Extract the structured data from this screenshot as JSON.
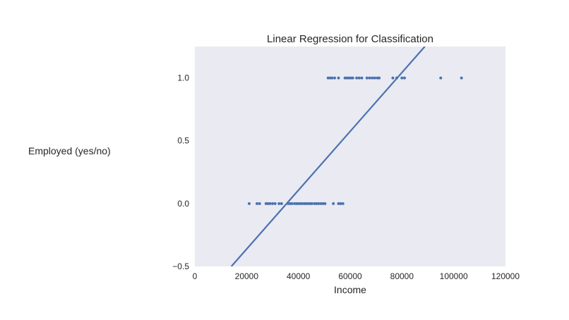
{
  "chart_data": {
    "type": "scatter",
    "title": "Linear Regression for Classification",
    "xlabel": "Income",
    "ylabel": "Employed (yes/no)",
    "xlim": [
      0,
      120000
    ],
    "ylim": [
      -0.5,
      1.25
    ],
    "xticks": [
      0,
      20000,
      40000,
      60000,
      80000,
      100000,
      120000
    ],
    "xtick_labels": [
      "0",
      "20000",
      "40000",
      "60000",
      "80000",
      "100000",
      "120000"
    ],
    "yticks": [
      -0.5,
      0.0,
      0.5,
      1.0
    ],
    "ytick_labels": [
      "−0.5",
      "0.0",
      "0.5",
      "1.0"
    ],
    "grid": false,
    "background_color": "#EAEAF2",
    "point_color": "#4C72B0",
    "line_color": "#4C72B0",
    "series": [
      {
        "kind": "points",
        "points": [
          [
            21000,
            0
          ],
          [
            24000,
            0
          ],
          [
            25000,
            0
          ],
          [
            27500,
            0
          ],
          [
            28200,
            0
          ],
          [
            29000,
            0
          ],
          [
            30000,
            0
          ],
          [
            31000,
            0
          ],
          [
            32500,
            0
          ],
          [
            33500,
            0
          ],
          [
            36000,
            0
          ],
          [
            36800,
            0
          ],
          [
            37500,
            0
          ],
          [
            38500,
            0
          ],
          [
            39300,
            0
          ],
          [
            40000,
            0
          ],
          [
            40800,
            0
          ],
          [
            41500,
            0
          ],
          [
            42300,
            0
          ],
          [
            43000,
            0
          ],
          [
            43800,
            0
          ],
          [
            44500,
            0
          ],
          [
            45200,
            0
          ],
          [
            46200,
            0
          ],
          [
            47000,
            0
          ],
          [
            47800,
            0
          ],
          [
            48700,
            0
          ],
          [
            49500,
            0
          ],
          [
            50300,
            0
          ],
          [
            53500,
            0
          ],
          [
            55500,
            0
          ],
          [
            56300,
            0
          ],
          [
            57200,
            0
          ],
          [
            51500,
            1
          ],
          [
            52300,
            1
          ],
          [
            53000,
            1
          ],
          [
            54000,
            1
          ],
          [
            55500,
            1
          ],
          [
            58000,
            1
          ],
          [
            58800,
            1
          ],
          [
            59500,
            1
          ],
          [
            60300,
            1
          ],
          [
            61000,
            1
          ],
          [
            62500,
            1
          ],
          [
            63500,
            1
          ],
          [
            64500,
            1
          ],
          [
            66500,
            1
          ],
          [
            67500,
            1
          ],
          [
            68500,
            1
          ],
          [
            69500,
            1
          ],
          [
            70500,
            1
          ],
          [
            71200,
            1
          ],
          [
            76500,
            1
          ],
          [
            78000,
            1
          ],
          [
            80000,
            1
          ],
          [
            81000,
            1
          ],
          [
            95000,
            1
          ],
          [
            103000,
            1
          ]
        ]
      },
      {
        "kind": "line",
        "x": [
          14100,
          88850
        ],
        "y": [
          -0.5,
          1.25
        ]
      }
    ]
  }
}
